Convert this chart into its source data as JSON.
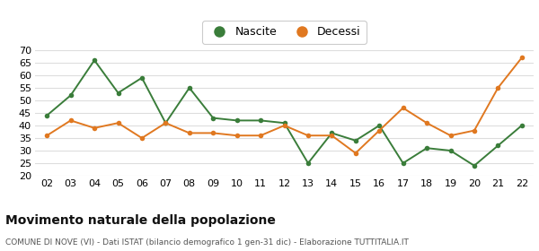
{
  "years": [
    "02",
    "03",
    "04",
    "05",
    "06",
    "07",
    "08",
    "09",
    "10",
    "11",
    "12",
    "13",
    "14",
    "15",
    "16",
    "17",
    "18",
    "19",
    "20",
    "21",
    "22"
  ],
  "nascite": [
    44,
    52,
    66,
    53,
    59,
    41,
    55,
    43,
    42,
    42,
    41,
    25,
    37,
    34,
    40,
    25,
    31,
    30,
    24,
    32,
    40
  ],
  "decessi": [
    36,
    42,
    39,
    41,
    35,
    41,
    37,
    37,
    36,
    36,
    40,
    36,
    36,
    29,
    38,
    47,
    41,
    36,
    38,
    55,
    67
  ],
  "nascite_color": "#3a7d3a",
  "decessi_color": "#e07820",
  "title": "Movimento naturale della popolazione",
  "subtitle": "COMUNE DI NOVE (VI) - Dati ISTAT (bilancio demografico 1 gen-31 dic) - Elaborazione TUTTITALIA.IT",
  "legend_nascite": "Nascite",
  "legend_decessi": "Decessi",
  "ylim": [
    20,
    70
  ],
  "yticks": [
    20,
    25,
    30,
    35,
    40,
    45,
    50,
    55,
    60,
    65,
    70
  ],
  "bg_color": "#ffffff",
  "grid_color": "#dddddd",
  "tick_label_fontsize": 8,
  "title_fontsize": 10,
  "subtitle_fontsize": 6.5,
  "legend_fontsize": 9
}
